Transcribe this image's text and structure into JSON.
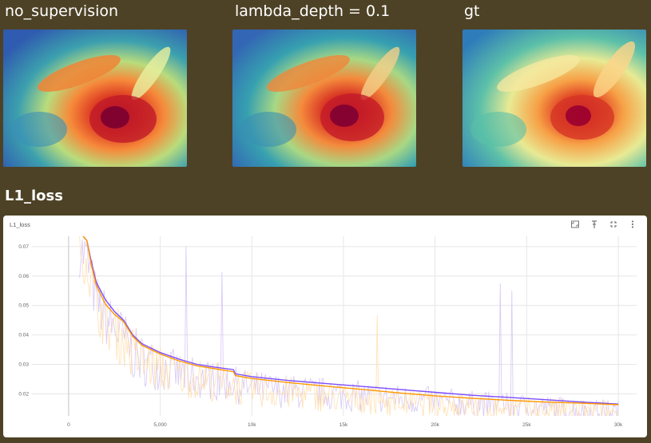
{
  "panels": [
    {
      "title": "no_supervision"
    },
    {
      "title": "lambda_depth = 0.1"
    },
    {
      "title": "gt"
    }
  ],
  "section_title": "L1_loss",
  "chart_card": {
    "label": "L1_loss",
    "icons": [
      "fit-to-data-icon",
      "pin-icon",
      "fullscreen-icon",
      "more-options-icon"
    ]
  },
  "colors": {
    "background": "#4e4226",
    "series_a": "#7c4dff",
    "series_b": "#ff9800",
    "series_a_raw": "#d6c6f5",
    "series_b_raw": "#ffe0b0"
  },
  "chart_data": {
    "type": "line",
    "title": "L1_loss",
    "xlabel": "",
    "ylabel": "",
    "xlim": [
      -2000,
      31000
    ],
    "ylim": [
      0.0125,
      0.0735
    ],
    "x_ticks": [
      0,
      5000,
      10000,
      15000,
      20000,
      25000,
      30000
    ],
    "x_tick_labels": [
      "0",
      "5,000",
      "10k",
      "15k",
      "20k",
      "25k",
      "30k"
    ],
    "y_ticks": [
      0.02,
      0.03,
      0.04,
      0.05,
      0.06,
      0.07
    ],
    "y_tick_labels": [
      "0.02",
      "0.03",
      "0.04",
      "0.05",
      "0.06",
      "0.07"
    ],
    "grid": true,
    "series": [
      {
        "name": "no_supervision",
        "color": "#7c4dff",
        "x": [
          600,
          1000,
          1200,
          1500,
          2000,
          2500,
          3000,
          3500,
          4000,
          5000,
          6000,
          7000,
          8000,
          9000,
          9100,
          10000,
          12000,
          14000,
          16000,
          18000,
          20000,
          22000,
          24000,
          26000,
          28000,
          30000
        ],
        "y": [
          0.075,
          0.072,
          0.066,
          0.058,
          0.052,
          0.048,
          0.045,
          0.04,
          0.037,
          0.034,
          0.0318,
          0.03,
          0.029,
          0.0282,
          0.0268,
          0.0258,
          0.0245,
          0.0235,
          0.0225,
          0.0215,
          0.0205,
          0.0195,
          0.0188,
          0.018,
          0.0172,
          0.0165
        ]
      },
      {
        "name": "lambda_depth = 0.1",
        "color": "#ff9800",
        "x": [
          600,
          1000,
          1200,
          1500,
          2000,
          2500,
          3000,
          3500,
          4000,
          5000,
          6000,
          7000,
          8000,
          9000,
          9100,
          10000,
          12000,
          14000,
          16000,
          18000,
          20000,
          22000,
          24000,
          26000,
          28000,
          30000
        ],
        "y": [
          0.075,
          0.072,
          0.065,
          0.057,
          0.0505,
          0.047,
          0.0445,
          0.0395,
          0.0365,
          0.0335,
          0.0312,
          0.0295,
          0.0285,
          0.0275,
          0.0262,
          0.0252,
          0.0238,
          0.0226,
          0.0215,
          0.0203,
          0.0193,
          0.0185,
          0.0178,
          0.0172,
          0.0168,
          0.0163
        ]
      }
    ]
  }
}
